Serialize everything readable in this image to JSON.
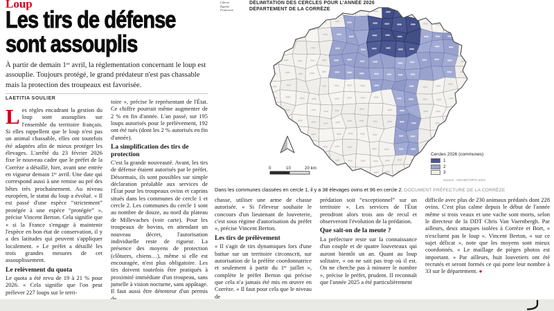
{
  "kicker": "Loup",
  "headline": {
    "line1": "Les tirs de défense",
    "line2": "sont assouplis"
  },
  "standfirst": "À partir de demain 1ᵉʳ avril, la réglementation concernant le loup est assouplie. Toujours protégé, le grand prédateur n'est pas chassable mais la protection des troupeaux est favorisée.",
  "byline": "LAETITIA SOULIER",
  "article": {
    "col1": {
      "dropcap": "L",
      "para1": "es règles encadrant la gestion du loup sont assouplies sur l'ensemble du territoire français. Si elles rappellent que le loup n'est pas un animal chassable, elles ont toutefois été adaptées afin de mieux protéger les élevages. L'arrêté du 23 février 2026 fixe le nouveau cadre que le préfet de la Corrèze a détaillé, hier, avant une entrée en vigueur demain 1ᵉʳ avril. Une date qui correspond aussi à une remise au pré des bêtes très prochainement. Au niveau européen, le statut du loup a évolué. « Il est passé d'une espèce “strictement” protégée à une espèce “protégée” », précise Vincent Berton. Cela signifie que « si la France s'engage à maintenir l'espèce en bon état de conservation, il y a des latitudes qui peuvent s'appliquer localement. » Le préfet a détaillé les trois grandes mesures de cet assouplissement.",
      "subhead": "Le relèvement du quota",
      "para2": "Le quota a été revu de 19 à 21 % pour 2026. « Cela signifie que l'on peut prélever 227 loups sur le terri-"
    },
    "col2": {
      "para1": "toire », précise le représentant de l'État. Ce chiffre pourrait même augmenter de 2 % en fin d'année. L'an passé, sur 195 loups autorisés pour le prélèvement, 192 ont été tués (dont les 2 % autorisés en fin d'année).",
      "subhead": "La simplification des tirs de protection",
      "para2": "C'est la grande nouveauté. Avant, les tirs de défense étaient autorisés par le préfet. Désormais, ils sont possibles sur simple déclaration préalable aux services de l'État pour les troupeaux ovins et caprins situés dans les communes de cercle 1 et cercle 2. Les communes du cercle 1 sont au nombre de douze, au nord du plateau de Millevaches (voir carte). Pour les troupeaux de bovins, en attendant un nouveau décret, l'autorisation individuelle reste de rigueur. La présence des moyens de protection (clôtures, chiens…), même si elle est encouragée, n'est plus obligatoire. Les tirs doivent toutefois être pratiqués à proximité immédiate d'un troupeau, sans jumelle à vision nocturne, sans appâtage. Il faut aussi être détenteur d'un permis de"
    },
    "col3": {
      "para1": "chasse, utiliser une arme de chasse autorisée. « Si l'éleveur souhaite le concours d'un lieutenant de louveterie, c'est sous régime d'autorisation du préfet », précise Vincent Berton.",
      "subhead": "Les tirs de prélèvement",
      "para2": "« Il s'agit de tirs dynamiques lors d'une battue sur un territoire circonscrit, sur autorisation de la préfète coordonnatrice et seulement à partir du 1ᵉʳ juillet », complète le préfet Berton qui précise que cela n'a jamais été mis en œuvre en Corrèze. « Il faut pour cela que le niveau de"
    },
    "col4": {
      "para1": "prédation soit “exceptionnel” sur un territoire ». Les services de l'État prendront alors trois ans de recul et observeront l'évolution de la prédation.",
      "subhead": "Que sait-on de la meute ?",
      "para2": "La préfecture reste sur la connaissance d'un couple et de quatre louveteaux qui auront bientôt un an. Quant au loup solitaire, « on ne sait pas trop où il est. On ne cherche pas à minorer le nombre », précise le préfet, prudent. Il reconnaît que l'année 2025 a été particulièrement"
    },
    "col5": {
      "para1": "difficile avec plus de 230 animaux prédatés dont 228 ovins. C'est plus calme depuis le début de l'année même si trois veaux et une vache sont morts, selon le directeur de la DDT Chris Van Vaernbergh. Par ailleurs, deux attaques isolées à Corrèze et Bort, « n'excluent pas le loup ». Vincent Berton, « sur ce sujet délicat », note que les moyens sont mieux coordonnés. « Le maillage de pièges photos est important. » Par ailleurs, huit louvetiers ont été recrutés et seront formés ce qui porte leur nombre à 33 sur le département.",
      "end_mark": "●"
    }
  },
  "map": {
    "motto": [
      "Liberté",
      "Égalité",
      "Fraternité"
    ],
    "title_line1": "DÉLIMITATION DES CERCLES POUR L'ANNÉE 2026",
    "title_line2": "DÉPARTEMENT DE LA CORRÈZE",
    "legend": {
      "title": "Cercles 2026 (communes)",
      "items": [
        {
          "label": "1",
          "color": "#4a568f"
        },
        {
          "label": "2",
          "color": "#99a3ce"
        },
        {
          "label": "3",
          "color": "#f2f1ee"
        }
      ]
    },
    "scale": {
      "labels": [
        "0",
        "10",
        "20 km"
      ]
    },
    "source": "Source : IGN BDTOPO 2021",
    "colors": {
      "c1_fills": [
        "#4a568f",
        "#424e86",
        "#515d97"
      ],
      "c2_fills": [
        "#98a2cd",
        "#8f99c7",
        "#a2abd3"
      ],
      "c3_fills": [
        "#f4f3f0",
        "#efeeeb",
        "#f6f5f2"
      ],
      "c1_stroke": "#2c3768",
      "c2_stroke": "#6a74a8",
      "c3_stroke": "#9b9b9b",
      "outline": "#4a4a4a"
    }
  },
  "caption": {
    "text": "Dans les communes classées en cercle 1, il y a 38 élevages ovins et 96 en cercle 2.",
    "credit": "DOCUMENT PRÉFECTURE DE LA CORRÈZE"
  }
}
